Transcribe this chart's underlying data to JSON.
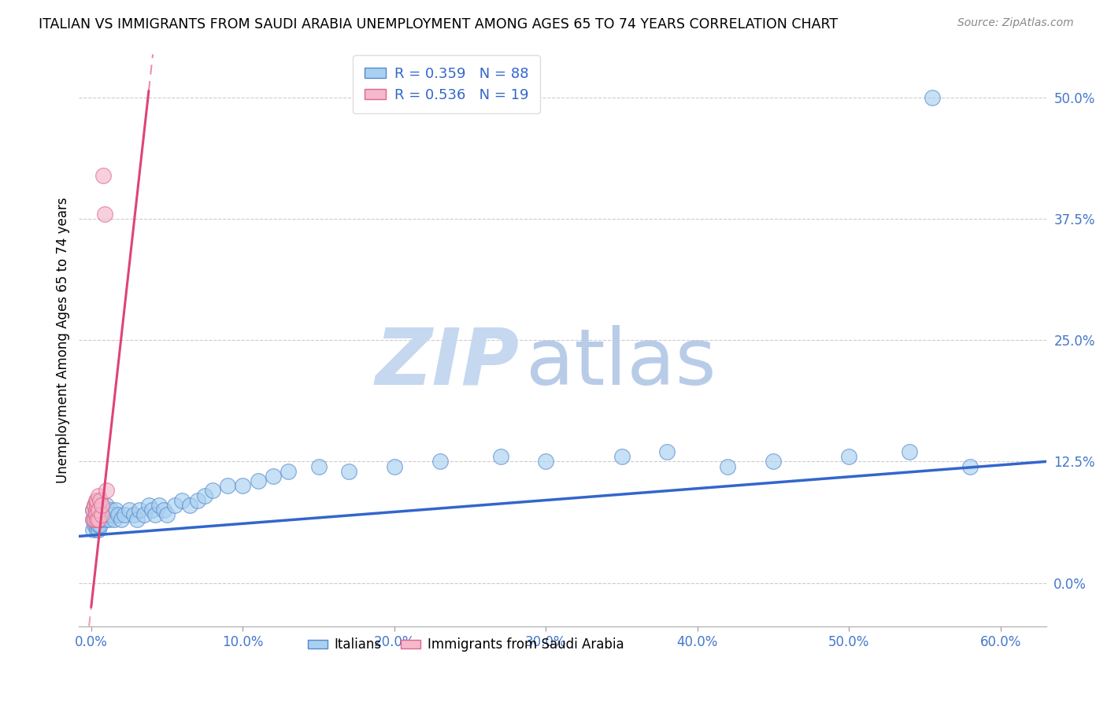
{
  "title": "ITALIAN VS IMMIGRANTS FROM SAUDI ARABIA UNEMPLOYMENT AMONG AGES 65 TO 74 YEARS CORRELATION CHART",
  "source_text": "Source: ZipAtlas.com",
  "ylabel": "Unemployment Among Ages 65 to 74 years",
  "xlabel_vals": [
    0.0,
    0.1,
    0.2,
    0.3,
    0.4,
    0.5,
    0.6
  ],
  "ylabel_vals": [
    0.0,
    0.125,
    0.25,
    0.375,
    0.5
  ],
  "xlim": [
    -0.008,
    0.63
  ],
  "ylim": [
    -0.045,
    0.545
  ],
  "legend1_R": "0.359",
  "legend1_N": "88",
  "legend2_R": "0.536",
  "legend2_N": "19",
  "blue_scatter_color": "#a8d0f0",
  "blue_scatter_edge": "#5588cc",
  "blue_line_color": "#3366cc",
  "pink_scatter_color": "#f5b8cc",
  "pink_scatter_edge": "#dd6688",
  "pink_line_color": "#dd4477",
  "watermark_zip_color": "#c5d8f0",
  "watermark_atlas_color": "#b8cce8",
  "tick_color": "#4477cc",
  "grid_color": "#cccccc",
  "blue_line_y0": 0.048,
  "blue_line_y1": 0.125,
  "pink_line_slope": 14.0,
  "pink_line_intercept": -0.025,
  "italian_x": [
    0.001,
    0.001,
    0.001,
    0.002,
    0.002,
    0.002,
    0.002,
    0.003,
    0.003,
    0.003,
    0.003,
    0.004,
    0.004,
    0.004,
    0.004,
    0.005,
    0.005,
    0.005,
    0.005,
    0.005,
    0.005,
    0.005,
    0.005,
    0.005,
    0.005,
    0.005,
    0.005,
    0.005,
    0.005,
    0.005,
    0.006,
    0.006,
    0.006,
    0.006,
    0.006,
    0.006,
    0.007,
    0.007,
    0.007,
    0.008,
    0.009,
    0.01,
    0.01,
    0.011,
    0.012,
    0.013,
    0.014,
    0.015,
    0.016,
    0.018,
    0.02,
    0.022,
    0.025,
    0.028,
    0.03,
    0.032,
    0.035,
    0.038,
    0.04,
    0.042,
    0.045,
    0.048,
    0.05,
    0.055,
    0.06,
    0.065,
    0.07,
    0.075,
    0.08,
    0.09,
    0.1,
    0.11,
    0.12,
    0.13,
    0.15,
    0.17,
    0.2,
    0.23,
    0.27,
    0.3,
    0.35,
    0.38,
    0.42,
    0.45,
    0.5,
    0.54,
    0.555,
    0.58
  ],
  "italian_y": [
    0.065,
    0.075,
    0.055,
    0.07,
    0.065,
    0.08,
    0.06,
    0.065,
    0.07,
    0.075,
    0.06,
    0.07,
    0.065,
    0.075,
    0.055,
    0.07,
    0.08,
    0.065,
    0.075,
    0.06,
    0.07,
    0.065,
    0.075,
    0.08,
    0.055,
    0.065,
    0.07,
    0.075,
    0.06,
    0.08,
    0.065,
    0.075,
    0.07,
    0.06,
    0.08,
    0.065,
    0.07,
    0.075,
    0.065,
    0.07,
    0.075,
    0.065,
    0.08,
    0.07,
    0.065,
    0.075,
    0.07,
    0.065,
    0.075,
    0.07,
    0.065,
    0.07,
    0.075,
    0.07,
    0.065,
    0.075,
    0.07,
    0.08,
    0.075,
    0.07,
    0.08,
    0.075,
    0.07,
    0.08,
    0.085,
    0.08,
    0.085,
    0.09,
    0.095,
    0.1,
    0.1,
    0.105,
    0.11,
    0.115,
    0.12,
    0.115,
    0.12,
    0.125,
    0.13,
    0.125,
    0.13,
    0.135,
    0.12,
    0.125,
    0.13,
    0.135,
    0.5,
    0.12
  ],
  "saudi_x": [
    0.001,
    0.001,
    0.002,
    0.002,
    0.003,
    0.003,
    0.003,
    0.004,
    0.004,
    0.004,
    0.005,
    0.005,
    0.005,
    0.006,
    0.007,
    0.007,
    0.008,
    0.009,
    0.01
  ],
  "saudi_y": [
    0.065,
    0.075,
    0.065,
    0.08,
    0.075,
    0.085,
    0.07,
    0.08,
    0.065,
    0.085,
    0.065,
    0.09,
    0.075,
    0.085,
    0.07,
    0.08,
    0.42,
    0.38,
    0.095
  ]
}
